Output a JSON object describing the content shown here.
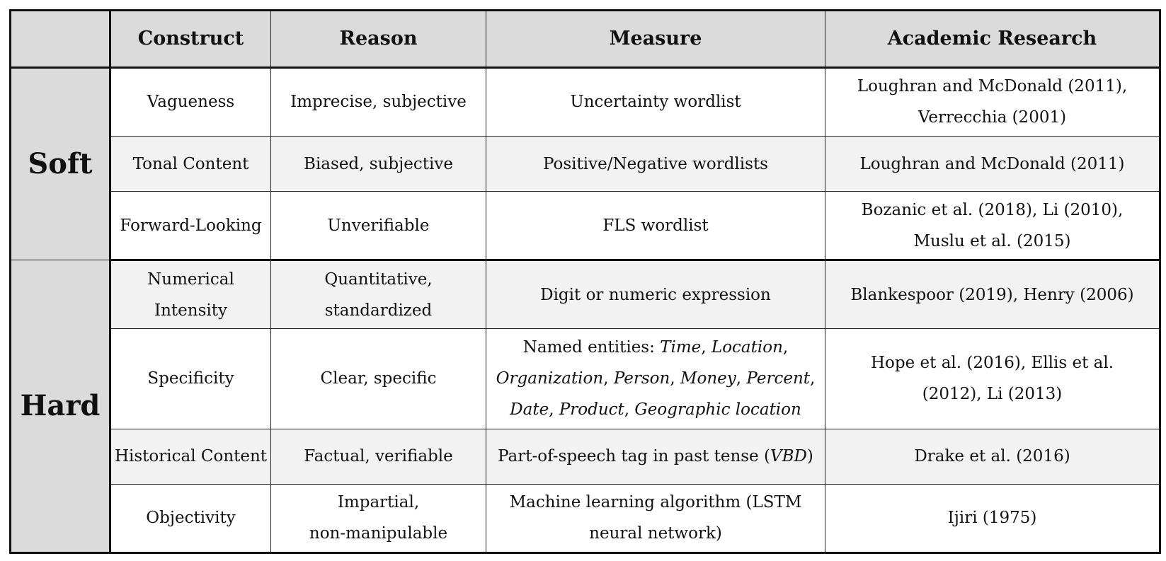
{
  "headers": [
    "",
    "Construct",
    "Reason",
    "Measure",
    "Academic Research"
  ],
  "groups": [
    {
      "label": "Soft",
      "rows": [
        {
          "construct": "Vagueness",
          "reason": [
            "Imprecise, subjective"
          ],
          "measure": [
            "Uncertainty wordlist"
          ],
          "research": [
            "Loughran and McDonald (2011),",
            "Verrecchia (2001)"
          ]
        },
        {
          "construct": "Tonal Content",
          "reason": [
            "Biased, subjective"
          ],
          "measure": [
            "Positive/Negative wordlists"
          ],
          "research": [
            "Loughran and McDonald (2011)"
          ]
        },
        {
          "construct": "Forward-Looking",
          "reason": [
            "Unverifiable"
          ],
          "measure": [
            "FLS wordlist"
          ],
          "research": [
            "Bozanic et al. (2018), Li (2010),",
            "Muslu et al. (2015)"
          ]
        }
      ]
    },
    {
      "label": "Hard",
      "rows": [
        {
          "construct": "Numerical Intensity",
          "reason": [
            "Quantitative,",
            "standardized"
          ],
          "measure": [
            "Digit or numeric expression"
          ],
          "research": [
            "Blankespoor (2019), Henry (2006)"
          ]
        },
        {
          "construct": "Specificity",
          "reason": [
            "Clear, specific"
          ],
          "measure": [
            "Named entities: Time, Location,",
            "Organization, Person, Money, Percent,",
            "Date, Product, Geographic location"
          ],
          "research": [
            "Hope et al. (2016), Ellis et al.",
            "(2012), Li (2013)"
          ]
        },
        {
          "construct": "Historical Content",
          "reason": [
            "Factual, verifiable"
          ],
          "measure": [
            "Part-of-speech tag in past tense (VBD)"
          ],
          "research": [
            "Drake et al. (2016)"
          ]
        },
        {
          "construct": "Objectivity",
          "reason": [
            "Impartial,",
            "non-manipulable"
          ],
          "measure": [
            "Machine learning algorithm (LSTM",
            "neural network)"
          ],
          "research": [
            "Ijiri (1975)"
          ]
        }
      ]
    }
  ]
}
